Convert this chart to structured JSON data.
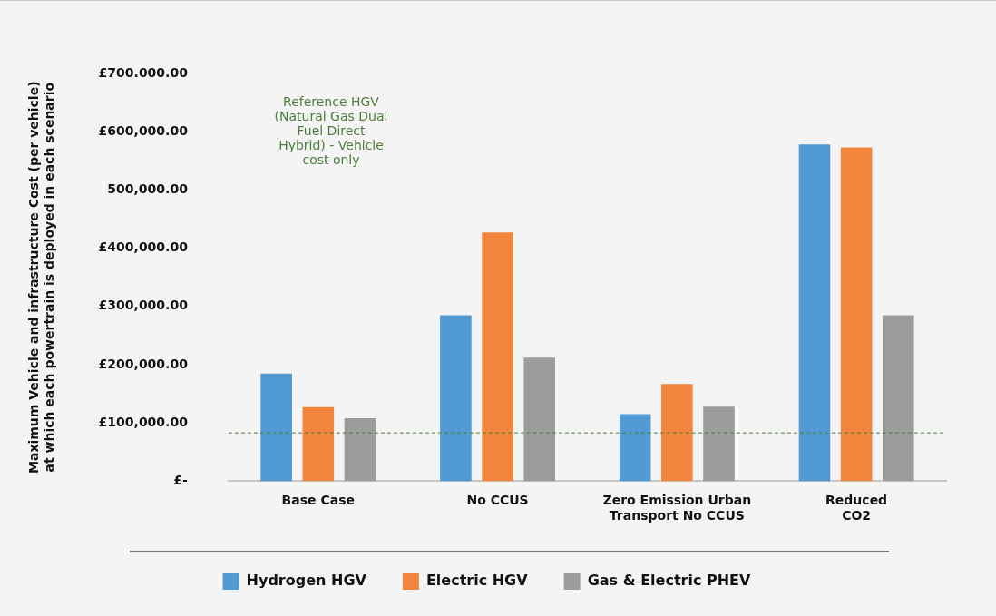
{
  "chart_data": {
    "type": "bar",
    "ylabel": "Maximum Vehicle and infrastructure Cost (per vehicle)\nat which each powertrain is deployed in each scenario",
    "categories": [
      "Base Case",
      "No CCUS",
      "Zero Emission Urban\nTransport No CCUS",
      "Reduced\nCO2"
    ],
    "series": [
      {
        "name": "Hydrogen HGV",
        "color": "#529ad3",
        "values": [
          185000,
          285000,
          115000,
          578000
        ]
      },
      {
        "name": "Electric HGV",
        "color": "#f2853d",
        "values": [
          127000,
          427000,
          167000,
          573000
        ]
      },
      {
        "name": "Gas & Electric PHEV",
        "color": "#9b9c9c",
        "values": [
          108000,
          212000,
          128000,
          285000
        ]
      }
    ],
    "ylim": [
      0,
      700000
    ],
    "yticks": [
      {
        "value": 0,
        "label": "£-"
      },
      {
        "value": 100000,
        "label": "£100,000.00"
      },
      {
        "value": 200000,
        "label": "£200,000.00"
      },
      {
        "value": 300000,
        "label": "£300,000.00"
      },
      {
        "value": 400000,
        "label": "£400,000.00"
      },
      {
        "value": 500000,
        "label": "500,000.00"
      },
      {
        "value": 600000,
        "label": "£600,000.00"
      },
      {
        "value": 700000,
        "label": "£700.000.00"
      }
    ],
    "ref_lines": [
      {
        "axis": "y",
        "value": 83000,
        "color": "#4e7d3e",
        "line_style": "dashed",
        "label": "Reference HGV (Natural Gas Dual Fuel Direct Hybrid) - Vehicle cost only"
      }
    ],
    "grid": false,
    "legend": "bottom"
  }
}
